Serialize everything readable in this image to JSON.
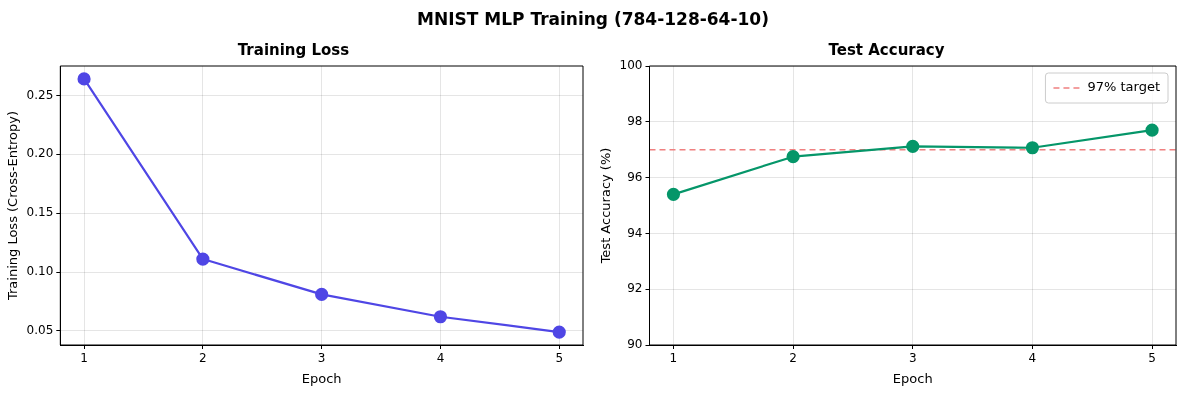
{
  "chart_data": [
    {
      "type": "line",
      "title": "Training Loss",
      "annotations": [
        "MNIST MLP Training (784-128-64-10)"
      ],
      "xlabel": "Epoch",
      "ylabel": "Training Loss (Cross-Entropy)",
      "x": [
        1,
        2,
        3,
        4,
        5
      ],
      "xlim": [
        0.8,
        5.2
      ],
      "xticks": [
        1,
        2,
        3,
        4,
        5
      ],
      "ylim": [
        0.038,
        0.275
      ],
      "yticks": [
        0.05,
        {
          "value": 0.1,
          "label": "0.10"
        },
        0.15,
        {
          "value": 0.2,
          "label": "0.20"
        },
        0.25
      ],
      "series": [
        {
          "color": "#4f46e5",
          "values": [
            0.264,
            0.111,
            0.081,
            0.062,
            0.049
          ]
        }
      ],
      "marker": "circle",
      "line_style": "solid",
      "grid": true,
      "legend": false
    },
    {
      "type": "line",
      "title": "Test Accuracy",
      "xlabel": "Epoch",
      "ylabel": "Test Accuracy (%)",
      "x": [
        1,
        2,
        3,
        4,
        5
      ],
      "xlim": [
        0.8,
        5.2
      ],
      "xticks": [
        1,
        2,
        3,
        4,
        5
      ],
      "ylim": [
        90,
        100
      ],
      "yticks": [
        90,
        92,
        94,
        96,
        98,
        100
      ],
      "series": [
        {
          "color": "#059669",
          "values": [
            95.4,
            96.75,
            97.12,
            97.07,
            97.7
          ]
        }
      ],
      "ref_lines": [
        {
          "axis": "y",
          "value": 97,
          "label": "97% target",
          "color": "#f08080",
          "line_style": "dashed"
        }
      ],
      "marker": "circle",
      "line_style": "solid",
      "grid": true,
      "legend": "top right"
    }
  ]
}
